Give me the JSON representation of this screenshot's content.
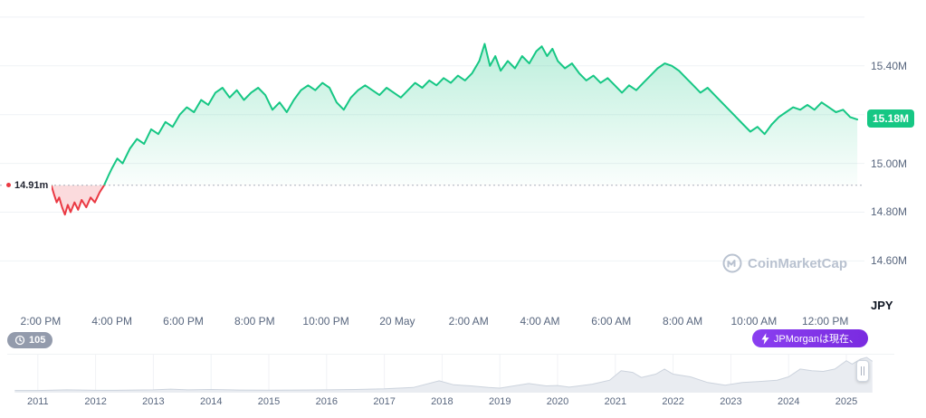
{
  "colors": {
    "green": "#16c784",
    "red": "#ea3943",
    "grid": "#eff2f5",
    "axis_text": "#58667e",
    "badge_purple": "#8247e5",
    "watermark": "#b9c2d0",
    "mini_fill": "#e9ecf1",
    "mini_stroke": "#ccd3dd",
    "dark_text": "#222531"
  },
  "chart": {
    "ref_label": "14.91m",
    "current_price_badge": "15.18M",
    "currency_label": "JPY",
    "watermark_text": "CoinMarketCap"
  },
  "badges": {
    "history_count": "105",
    "ticker_text": "JPMorganは現在、"
  },
  "chart_data": [
    {
      "type": "area",
      "role": "main-price-chart",
      "ylabel": "JPY",
      "unit": "million JPY",
      "ref_value": 14.91,
      "current_value": 15.18,
      "x_unit": "hours since 2:00 PM 19 May",
      "xlim": [
        -1.14,
        23.1
      ],
      "ylim": [
        14.39,
        15.67
      ],
      "gridline_values": [
        15.6,
        15.4,
        15.2,
        15.0,
        14.8,
        14.6
      ],
      "y_ticks": [
        {
          "label": "15.40M",
          "value": 15.4
        },
        {
          "label": "15.00M",
          "value": 15.0
        },
        {
          "label": "14.80M",
          "value": 14.8
        },
        {
          "label": "14.60M",
          "value": 14.6
        }
      ],
      "x_ticks": [
        {
          "label": "2:00 PM",
          "t": 0
        },
        {
          "label": "4:00 PM",
          "t": 2
        },
        {
          "label": "6:00 PM",
          "t": 4
        },
        {
          "label": "8:00 PM",
          "t": 6
        },
        {
          "label": "10:00 PM",
          "t": 8
        },
        {
          "label": "20 May",
          "t": 10
        },
        {
          "label": "2:00 AM",
          "t": 12
        },
        {
          "label": "4:00 AM",
          "t": 14
        },
        {
          "label": "6:00 AM",
          "t": 16
        },
        {
          "label": "8:00 AM",
          "t": 18
        },
        {
          "label": "10:00 AM",
          "t": 20
        },
        {
          "label": "12:00 PM",
          "t": 22
        }
      ],
      "points": [
        [
          0.3,
          14.91
        ],
        [
          0.38,
          14.87
        ],
        [
          0.45,
          14.84
        ],
        [
          0.52,
          14.86
        ],
        [
          0.6,
          14.82
        ],
        [
          0.68,
          14.79
        ],
        [
          0.76,
          14.83
        ],
        [
          0.84,
          14.8
        ],
        [
          0.95,
          14.84
        ],
        [
          1.05,
          14.81
        ],
        [
          1.15,
          14.85
        ],
        [
          1.28,
          14.82
        ],
        [
          1.4,
          14.86
        ],
        [
          1.52,
          14.84
        ],
        [
          1.65,
          14.88
        ],
        [
          1.78,
          14.91
        ],
        [
          1.9,
          14.95
        ],
        [
          2.0,
          14.98
        ],
        [
          2.15,
          15.02
        ],
        [
          2.3,
          15.0
        ],
        [
          2.5,
          15.06
        ],
        [
          2.7,
          15.1
        ],
        [
          2.9,
          15.08
        ],
        [
          3.1,
          15.14
        ],
        [
          3.3,
          15.12
        ],
        [
          3.5,
          15.17
        ],
        [
          3.7,
          15.15
        ],
        [
          3.9,
          15.2
        ],
        [
          4.1,
          15.23
        ],
        [
          4.3,
          15.21
        ],
        [
          4.5,
          15.26
        ],
        [
          4.7,
          15.24
        ],
        [
          4.9,
          15.29
        ],
        [
          5.1,
          15.31
        ],
        [
          5.3,
          15.27
        ],
        [
          5.5,
          15.3
        ],
        [
          5.7,
          15.26
        ],
        [
          5.9,
          15.29
        ],
        [
          6.1,
          15.31
        ],
        [
          6.3,
          15.28
        ],
        [
          6.5,
          15.22
        ],
        [
          6.7,
          15.25
        ],
        [
          6.9,
          15.21
        ],
        [
          7.1,
          15.26
        ],
        [
          7.3,
          15.3
        ],
        [
          7.5,
          15.32
        ],
        [
          7.7,
          15.3
        ],
        [
          7.9,
          15.33
        ],
        [
          8.1,
          15.31
        ],
        [
          8.3,
          15.25
        ],
        [
          8.5,
          15.22
        ],
        [
          8.7,
          15.27
        ],
        [
          8.9,
          15.3
        ],
        [
          9.1,
          15.32
        ],
        [
          9.3,
          15.3
        ],
        [
          9.5,
          15.28
        ],
        [
          9.7,
          15.31
        ],
        [
          9.9,
          15.29
        ],
        [
          10.1,
          15.27
        ],
        [
          10.3,
          15.3
        ],
        [
          10.5,
          15.33
        ],
        [
          10.7,
          15.31
        ],
        [
          10.9,
          15.34
        ],
        [
          11.1,
          15.32
        ],
        [
          11.3,
          15.35
        ],
        [
          11.5,
          15.33
        ],
        [
          11.7,
          15.36
        ],
        [
          11.9,
          15.34
        ],
        [
          12.1,
          15.37
        ],
        [
          12.3,
          15.42
        ],
        [
          12.45,
          15.49
        ],
        [
          12.6,
          15.4
        ],
        [
          12.75,
          15.44
        ],
        [
          12.9,
          15.38
        ],
        [
          13.1,
          15.42
        ],
        [
          13.3,
          15.39
        ],
        [
          13.5,
          15.44
        ],
        [
          13.7,
          15.41
        ],
        [
          13.9,
          15.46
        ],
        [
          14.05,
          15.48
        ],
        [
          14.2,
          15.44
        ],
        [
          14.35,
          15.47
        ],
        [
          14.5,
          15.42
        ],
        [
          14.7,
          15.39
        ],
        [
          14.9,
          15.41
        ],
        [
          15.1,
          15.37
        ],
        [
          15.3,
          15.34
        ],
        [
          15.5,
          15.36
        ],
        [
          15.7,
          15.33
        ],
        [
          15.9,
          15.35
        ],
        [
          16.1,
          15.32
        ],
        [
          16.3,
          15.29
        ],
        [
          16.5,
          15.32
        ],
        [
          16.7,
          15.3
        ],
        [
          16.9,
          15.33
        ],
        [
          17.1,
          15.36
        ],
        [
          17.3,
          15.39
        ],
        [
          17.5,
          15.41
        ],
        [
          17.7,
          15.4
        ],
        [
          17.9,
          15.38
        ],
        [
          18.1,
          15.35
        ],
        [
          18.3,
          15.32
        ],
        [
          18.5,
          15.29
        ],
        [
          18.7,
          15.31
        ],
        [
          18.9,
          15.28
        ],
        [
          19.1,
          15.25
        ],
        [
          19.3,
          15.22
        ],
        [
          19.5,
          15.19
        ],
        [
          19.7,
          15.16
        ],
        [
          19.9,
          15.13
        ],
        [
          20.1,
          15.15
        ],
        [
          20.3,
          15.12
        ],
        [
          20.5,
          15.16
        ],
        [
          20.7,
          15.19
        ],
        [
          20.9,
          15.21
        ],
        [
          21.1,
          15.23
        ],
        [
          21.3,
          15.22
        ],
        [
          21.5,
          15.24
        ],
        [
          21.7,
          15.22
        ],
        [
          21.9,
          15.25
        ],
        [
          22.1,
          15.23
        ],
        [
          22.3,
          15.21
        ],
        [
          22.5,
          15.22
        ],
        [
          22.7,
          15.19
        ],
        [
          22.9,
          15.18
        ]
      ]
    },
    {
      "type": "area",
      "role": "range-selector-thumbnail",
      "values_normalized": true,
      "xlim": [
        2010.47,
        2025.83
      ],
      "ylim": [
        0,
        1
      ],
      "year_ticks": [
        {
          "label": "2011",
          "year": 2011
        },
        {
          "label": "2012",
          "year": 2012
        },
        {
          "label": "2013",
          "year": 2013
        },
        {
          "label": "2014",
          "year": 2014
        },
        {
          "label": "2015",
          "year": 2015
        },
        {
          "label": "2016",
          "year": 2016
        },
        {
          "label": "2017",
          "year": 2017
        },
        {
          "label": "2018",
          "year": 2018
        },
        {
          "label": "2019",
          "year": 2019
        },
        {
          "label": "2020",
          "year": 2020
        },
        {
          "label": "2021",
          "year": 2021
        },
        {
          "label": "2022",
          "year": 2022
        },
        {
          "label": "2023",
          "year": 2023
        },
        {
          "label": "2024",
          "year": 2024
        },
        {
          "label": "2025",
          "year": 2025
        }
      ],
      "points": [
        [
          2010.6,
          0.01
        ],
        [
          2011.0,
          0.01
        ],
        [
          2011.5,
          0.03
        ],
        [
          2012.0,
          0.015
        ],
        [
          2012.5,
          0.02
        ],
        [
          2013.0,
          0.03
        ],
        [
          2013.3,
          0.05
        ],
        [
          2013.6,
          0.03
        ],
        [
          2014.0,
          0.04
        ],
        [
          2014.5,
          0.025
        ],
        [
          2015.0,
          0.02
        ],
        [
          2015.5,
          0.025
        ],
        [
          2016.0,
          0.03
        ],
        [
          2016.5,
          0.04
        ],
        [
          2017.0,
          0.06
        ],
        [
          2017.5,
          0.1
        ],
        [
          2017.95,
          0.3
        ],
        [
          2018.2,
          0.18
        ],
        [
          2018.5,
          0.15
        ],
        [
          2018.8,
          0.1
        ],
        [
          2019.0,
          0.08
        ],
        [
          2019.5,
          0.22
        ],
        [
          2019.8,
          0.15
        ],
        [
          2020.0,
          0.16
        ],
        [
          2020.2,
          0.11
        ],
        [
          2020.6,
          0.2
        ],
        [
          2020.9,
          0.32
        ],
        [
          2021.1,
          0.6
        ],
        [
          2021.3,
          0.55
        ],
        [
          2021.45,
          0.4
        ],
        [
          2021.7,
          0.5
        ],
        [
          2021.85,
          0.65
        ],
        [
          2022.0,
          0.5
        ],
        [
          2022.3,
          0.42
        ],
        [
          2022.6,
          0.25
        ],
        [
          2022.9,
          0.17
        ],
        [
          2023.2,
          0.25
        ],
        [
          2023.5,
          0.28
        ],
        [
          2023.8,
          0.32
        ],
        [
          2024.0,
          0.42
        ],
        [
          2024.2,
          0.65
        ],
        [
          2024.4,
          0.6
        ],
        [
          2024.6,
          0.58
        ],
        [
          2024.8,
          0.65
        ],
        [
          2025.0,
          0.9
        ],
        [
          2025.1,
          0.8
        ],
        [
          2025.25,
          0.95
        ],
        [
          2025.35,
          1.0
        ],
        [
          2025.45,
          0.88
        ]
      ]
    }
  ]
}
